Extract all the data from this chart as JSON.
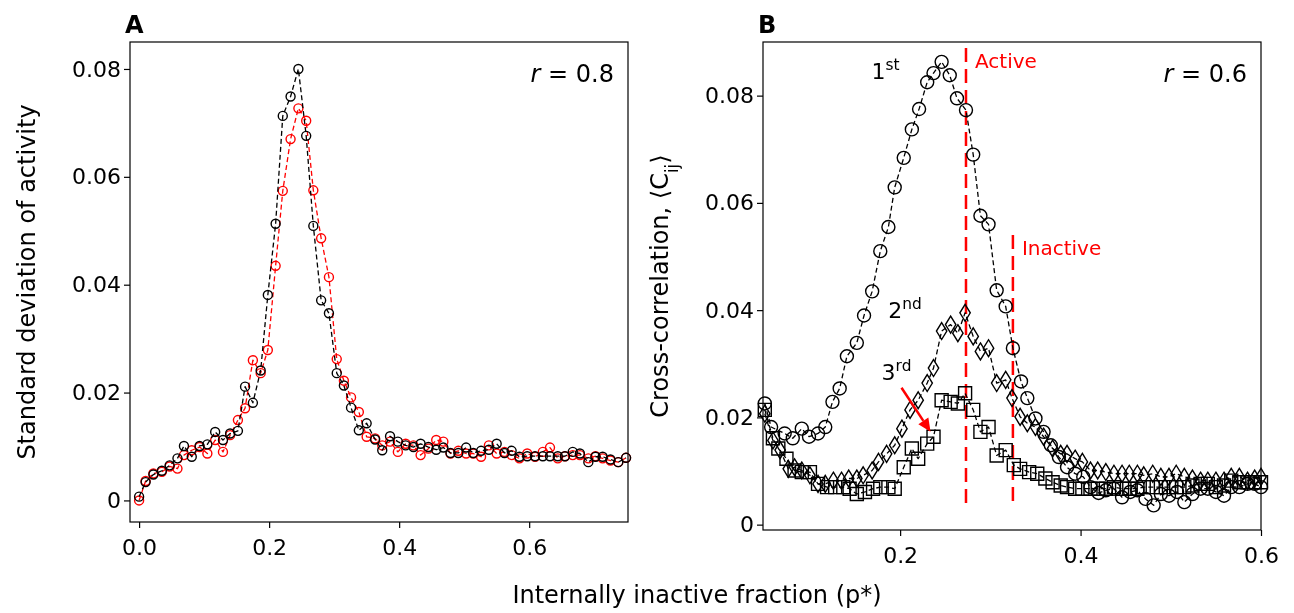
{
  "chart_data": [
    {
      "type": "line",
      "title": "A",
      "ylabel": "Standard deviation of activity",
      "xlabel": "Internally inactive fraction (p*)",
      "annotations": [
        "r = 0.8"
      ],
      "marker": "circle",
      "line_style": "dashed",
      "xlim": [
        -0.014,
        0.752
      ],
      "ylim": [
        -0.004,
        0.085
      ],
      "xticks": [
        {
          "value": 0,
          "label": "0.0"
        },
        0.2,
        0.4,
        0.6
      ],
      "yticks": [
        0,
        0.02,
        0.04,
        0.06,
        0.08
      ],
      "x": [
        0.0,
        0.01,
        0.022,
        0.035,
        0.047,
        0.059,
        0.069,
        0.081,
        0.093,
        0.105,
        0.117,
        0.129,
        0.14,
        0.152,
        0.163,
        0.175,
        0.187,
        0.198,
        0.21,
        0.221,
        0.233,
        0.245,
        0.257,
        0.268,
        0.28,
        0.292,
        0.304,
        0.315,
        0.326,
        0.338,
        0.35,
        0.363,
        0.374,
        0.386,
        0.398,
        0.41,
        0.422,
        0.433,
        0.445,
        0.457,
        0.468,
        0.479,
        0.491,
        0.503,
        0.514,
        0.526,
        0.538,
        0.55,
        0.562,
        0.573,
        0.585,
        0.597,
        0.609,
        0.621,
        0.632,
        0.644,
        0.655,
        0.667,
        0.678,
        0.691,
        0.702,
        0.713,
        0.725,
        0.737,
        0.749
      ],
      "series": [
        {
          "color": "#ff0000",
          "values": [
            0.0,
            0.0036,
            0.005,
            0.0053,
            0.0063,
            0.0059,
            0.0084,
            0.0093,
            0.0099,
            0.0087,
            0.0112,
            0.009,
            0.0121,
            0.0149,
            0.0171,
            0.026,
            0.0236,
            0.0279,
            0.0435,
            0.0574,
            0.067,
            0.0727,
            0.0704,
            0.0575,
            0.0486,
            0.0414,
            0.0262,
            0.0222,
            0.0191,
            0.0164,
            0.0118,
            0.0115,
            0.0102,
            0.0109,
            0.009,
            0.0105,
            0.0102,
            0.0084,
            0.0096,
            0.0112,
            0.0109,
            0.0087,
            0.0092,
            0.0087,
            0.0087,
            0.0081,
            0.0102,
            0.0087,
            0.009,
            0.0084,
            0.0078,
            0.0087,
            0.0081,
            0.009,
            0.0098,
            0.0078,
            0.0082,
            0.0084,
            0.0084,
            0.0078,
            0.0082,
            0.0078,
            0.0074,
            0.0071,
            0.0079
          ]
        },
        {
          "color": "#000000",
          "values": [
            0.0007,
            0.0034,
            0.0048,
            0.0055,
            0.0065,
            0.0078,
            0.0101,
            0.0081,
            0.0101,
            0.0104,
            0.0127,
            0.0112,
            0.0124,
            0.0129,
            0.0211,
            0.0181,
            0.0241,
            0.0381,
            0.0513,
            0.0713,
            0.0749,
            0.08,
            0.0676,
            0.0509,
            0.0371,
            0.0347,
            0.0236,
            0.0213,
            0.0172,
            0.013,
            0.0143,
            0.0113,
            0.0093,
            0.0119,
            0.0109,
            0.0102,
            0.0099,
            0.0105,
            0.0099,
            0.0094,
            0.0098,
            0.0088,
            0.0088,
            0.0098,
            0.0088,
            0.0092,
            0.0094,
            0.0105,
            0.0088,
            0.0092,
            0.0081,
            0.0082,
            0.0082,
            0.0082,
            0.0082,
            0.0082,
            0.0082,
            0.009,
            0.0087,
            0.0071,
            0.0081,
            0.0081,
            0.0076,
            0.0071,
            0.0079
          ]
        }
      ]
    },
    {
      "type": "line",
      "title": "B",
      "ylabel": "Cross-correlation, ⟨C$_{ij}$⟩",
      "annotations": [
        "r = 0.6",
        {
          "text": "1$^{st}$",
          "x": 0.246,
          "y": 0.0863
        },
        {
          "text": "2$^{nd}$",
          "x": 0.272,
          "y": 0.0395
        },
        {
          "text": "3$^{rd}$",
          "x": 0.237,
          "y": 0.0164
        }
      ],
      "line_style": "dashed",
      "xlim": [
        0.048,
        0.6
      ],
      "ylim": [
        -0.001,
        0.09
      ],
      "xticks": [
        0.2,
        0.4,
        0.6
      ],
      "yticks": [
        0,
        0.02,
        0.04,
        0.06,
        0.08
      ],
      "ref_lines": [
        {
          "axis": "x",
          "value": 0.273,
          "label": "Active",
          "color": "#ff0000",
          "line_style": "dashed"
        },
        {
          "axis": "x",
          "value": 0.325,
          "label": "Inactive",
          "color": "#ff0000",
          "line_style": "dashed"
        }
      ],
      "series": [
        {
          "color": "#000000",
          "marker": "circle",
          "x": [
            0.05,
            0.057,
            0.072,
            0.081,
            0.091,
            0.099,
            0.109,
            0.117,
            0.125,
            0.133,
            0.141,
            0.152,
            0.16,
            0.169,
            0.178,
            0.187,
            0.194,
            0.204,
            0.213,
            0.221,
            0.23,
            0.237,
            0.246,
            0.255,
            0.263,
            0.273,
            0.281,
            0.289,
            0.298,
            0.307,
            0.317,
            0.325,
            0.334,
            0.341,
            0.35,
            0.359,
            0.367,
            0.376,
            0.385,
            0.394,
            0.403,
            0.411,
            0.42,
            0.428,
            0.437,
            0.446,
            0.455,
            0.463,
            0.472,
            0.481,
            0.489,
            0.498,
            0.507,
            0.515,
            0.524,
            0.533,
            0.541,
            0.55,
            0.559,
            0.567,
            0.576,
            0.585,
            0.593,
            0.6
          ],
          "values": [
            0.0226,
            0.0182,
            0.017,
            0.0161,
            0.0179,
            0.0164,
            0.017,
            0.0182,
            0.0229,
            0.0254,
            0.0314,
            0.0339,
            0.039,
            0.0435,
            0.051,
            0.0555,
            0.0629,
            0.0684,
            0.0737,
            0.0775,
            0.0825,
            0.0842,
            0.0863,
            0.0838,
            0.0795,
            0.0773,
            0.069,
            0.0576,
            0.056,
            0.0437,
            0.0407,
            0.0329,
            0.0267,
            0.0236,
            0.0198,
            0.0173,
            0.0148,
            0.0126,
            0.0107,
            0.0095,
            0.0089,
            0.007,
            0.0059,
            0.0064,
            0.0067,
            0.0051,
            0.0061,
            0.0064,
            0.0048,
            0.0036,
            0.0057,
            0.0054,
            0.0061,
            0.0042,
            0.0057,
            0.0067,
            0.0067,
            0.0061,
            0.0054,
            0.007,
            0.007,
            0.0076,
            0.0076,
            0.007
          ]
        },
        {
          "color": "#000000",
          "marker": "diamond",
          "x": [
            0.05,
            0.059,
            0.067,
            0.076,
            0.083,
            0.091,
            0.1,
            0.109,
            0.117,
            0.126,
            0.135,
            0.143,
            0.152,
            0.159,
            0.169,
            0.176,
            0.185,
            0.194,
            0.202,
            0.211,
            0.22,
            0.23,
            0.237,
            0.246,
            0.256,
            0.264,
            0.272,
            0.281,
            0.289,
            0.298,
            0.307,
            0.317,
            0.324,
            0.333,
            0.341,
            0.35,
            0.359,
            0.369,
            0.378,
            0.385,
            0.394,
            0.402,
            0.411,
            0.419,
            0.428,
            0.437,
            0.446,
            0.454,
            0.463,
            0.47,
            0.48,
            0.489,
            0.498,
            0.506,
            0.515,
            0.524,
            0.533,
            0.541,
            0.55,
            0.559,
            0.567,
            0.576,
            0.585,
            0.593,
            0.6
          ],
          "values": [
            0.0207,
            0.0157,
            0.0139,
            0.0104,
            0.0107,
            0.0101,
            0.0092,
            0.0076,
            0.0076,
            0.0082,
            0.0082,
            0.0086,
            0.0086,
            0.0092,
            0.0101,
            0.0117,
            0.0132,
            0.0148,
            0.0179,
            0.0214,
            0.0232,
            0.0264,
            0.0292,
            0.0361,
            0.0373,
            0.0357,
            0.0395,
            0.0351,
            0.0323,
            0.0329,
            0.0264,
            0.027,
            0.0236,
            0.0201,
            0.0189,
            0.0182,
            0.0164,
            0.0142,
            0.0132,
            0.0132,
            0.0123,
            0.0117,
            0.0101,
            0.0101,
            0.0098,
            0.0095,
            0.0095,
            0.0095,
            0.0095,
            0.0092,
            0.0095,
            0.0089,
            0.0089,
            0.0095,
            0.0089,
            0.0086,
            0.0082,
            0.0082,
            0.0082,
            0.0082,
            0.0089,
            0.0089,
            0.0082,
            0.0086,
            0.0089
          ]
        },
        {
          "color": "#000000",
          "marker": "square",
          "x": [
            0.05,
            0.059,
            0.065,
            0.074,
            0.083,
            0.091,
            0.1,
            0.109,
            0.119,
            0.128,
            0.137,
            0.144,
            0.152,
            0.161,
            0.17,
            0.178,
            0.187,
            0.194,
            0.204,
            0.213,
            0.22,
            0.23,
            0.237,
            0.246,
            0.256,
            0.264,
            0.272,
            0.281,
            0.289,
            0.298,
            0.307,
            0.317,
            0.326,
            0.333,
            0.343,
            0.352,
            0.361,
            0.369,
            0.378,
            0.385,
            0.394,
            0.402,
            0.411,
            0.419,
            0.428,
            0.437,
            0.446,
            0.454,
            0.463,
            0.47,
            0.48,
            0.489,
            0.498,
            0.506,
            0.515,
            0.524,
            0.533,
            0.541,
            0.55,
            0.559,
            0.567,
            0.576,
            0.585,
            0.593,
            0.6
          ],
          "values": [
            0.0214,
            0.0161,
            0.0142,
            0.0123,
            0.0101,
            0.0098,
            0.0098,
            0.0076,
            0.007,
            0.007,
            0.007,
            0.0067,
            0.0057,
            0.0061,
            0.0067,
            0.007,
            0.007,
            0.0067,
            0.0107,
            0.0142,
            0.0123,
            0.0151,
            0.0164,
            0.0232,
            0.0229,
            0.0226,
            0.0245,
            0.0214,
            0.0173,
            0.0182,
            0.0129,
            0.0139,
            0.0111,
            0.0104,
            0.0098,
            0.0095,
            0.0086,
            0.0079,
            0.0073,
            0.007,
            0.0067,
            0.0067,
            0.0067,
            0.0067,
            0.0067,
            0.007,
            0.0067,
            0.0067,
            0.0067,
            0.007,
            0.007,
            0.007,
            0.007,
            0.007,
            0.007,
            0.0073,
            0.0076,
            0.0076,
            0.007,
            0.0073,
            0.0082,
            0.0079,
            0.0079,
            0.0079,
            0.0079
          ]
        }
      ]
    }
  ]
}
